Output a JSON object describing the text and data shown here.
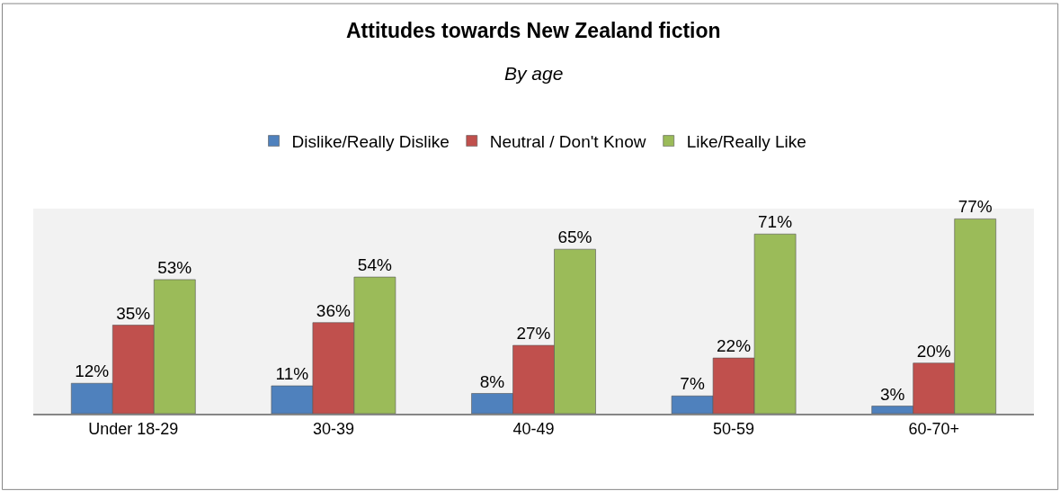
{
  "chart_data": {
    "type": "bar",
    "title": "Attitudes towards New Zealand fiction",
    "subtitle": "By age",
    "categories": [
      "Under 18-29",
      "30-39",
      "40-49",
      "50-59",
      "60-70+"
    ],
    "series": [
      {
        "name": "Dislike/Really Dislike",
        "color": "#4f81bd",
        "values": [
          12,
          11,
          8,
          7,
          3
        ],
        "value_labels": [
          "12%",
          "11%",
          "8%",
          "7%",
          "3%"
        ]
      },
      {
        "name": "Neutral / Don't Know",
        "color": "#c0504d",
        "values": [
          35,
          36,
          27,
          22,
          20
        ],
        "value_labels": [
          "35%",
          "36%",
          "27%",
          "22%",
          "20%"
        ]
      },
      {
        "name": "Like/Really Like",
        "color": "#9bbb59",
        "values": [
          53,
          54,
          65,
          71,
          77
        ],
        "value_labels": [
          "53%",
          "54%",
          "65%",
          "71%",
          "77%"
        ]
      }
    ],
    "grid": false,
    "legend": "top"
  }
}
